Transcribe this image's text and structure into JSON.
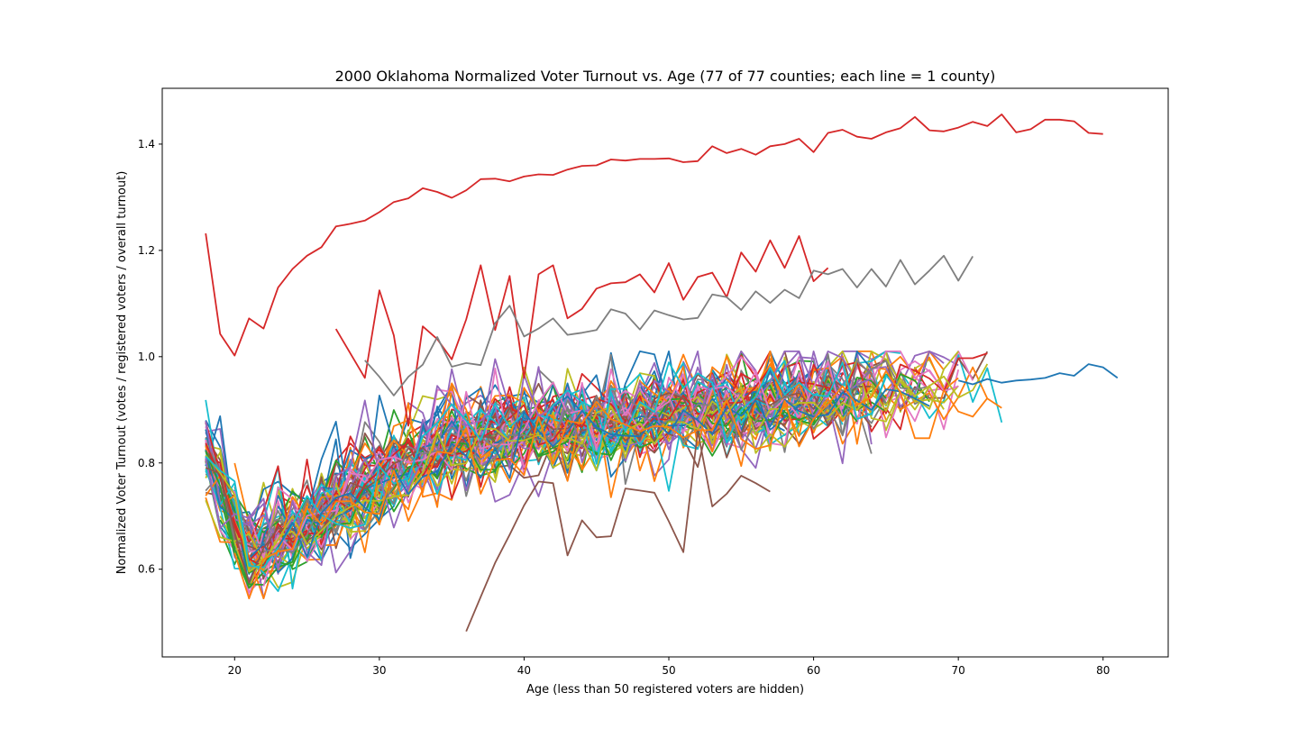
{
  "chart_data": {
    "type": "line",
    "title": "2000 Oklahoma Normalized Voter Turnout vs. Age (77 of 77 counties; each line = 1 county)",
    "xlabel": "Age (less than 50 registered voters are hidden)",
    "ylabel": "Normalized Voter Turnout (votes / registered voters / overall turnout)",
    "xlim": [
      15,
      84.5
    ],
    "ylim": [
      0.435,
      1.505
    ],
    "xticks": [
      20,
      30,
      40,
      50,
      60,
      70,
      80
    ],
    "yticks": [
      0.6,
      0.8,
      1.0,
      1.2,
      1.4
    ],
    "xtick_labels": [
      "20",
      "30",
      "40",
      "50",
      "60",
      "70",
      "80"
    ],
    "ytick_labels": [
      "0.6",
      "0.8",
      "1.0",
      "1.2",
      "1.4"
    ],
    "grid": false,
    "legend": "none",
    "colors": [
      "#1f77b4",
      "#ff7f0e",
      "#2ca02c",
      "#d62728",
      "#9467bd",
      "#8c564b",
      "#e377c2",
      "#7f7f7f",
      "#bcbd22",
      "#17becf"
    ],
    "highlighted_series": [
      {
        "color": "#d62728",
        "x": [
          18,
          19,
          20,
          21,
          22,
          23,
          24,
          25,
          26,
          27,
          28,
          29,
          30,
          31,
          32,
          33,
          34,
          35,
          36,
          37,
          38,
          39,
          40,
          41,
          42,
          43,
          44,
          45,
          46,
          47,
          48,
          49,
          50,
          51,
          52,
          53,
          54,
          55,
          56,
          57,
          58,
          59,
          60,
          61,
          62,
          63,
          64,
          65,
          66,
          67,
          68,
          69,
          70,
          71,
          72,
          73,
          74,
          75,
          76,
          77,
          78,
          79,
          80
        ],
        "y": [
          1.232,
          1.043,
          1.002,
          1.072,
          1.053,
          1.13,
          1.165,
          1.19,
          1.206,
          1.245,
          1.25,
          1.256,
          1.272,
          1.291,
          1.298,
          1.317,
          1.31,
          1.299,
          1.313,
          1.334,
          1.335,
          1.33,
          1.339,
          1.343,
          1.342,
          1.352,
          1.359,
          1.36,
          1.371,
          1.369,
          1.372,
          1.372,
          1.373,
          1.366,
          1.368,
          1.396,
          1.383,
          1.391,
          1.38,
          1.396,
          1.4,
          1.41,
          1.385,
          1.421,
          1.427,
          1.414,
          1.41,
          1.422,
          1.43,
          1.451,
          1.426,
          1.424,
          1.431,
          1.442,
          1.434,
          1.456,
          1.422,
          1.428,
          1.446,
          1.446,
          1.443,
          1.421,
          1.419
        ]
      },
      {
        "color": "#d62728",
        "x": [
          27,
          29,
          30,
          31,
          32,
          33,
          34,
          35,
          36,
          37,
          38,
          39,
          40,
          41,
          42,
          43,
          44,
          45,
          46,
          47,
          48,
          49,
          50,
          51,
          52,
          53,
          54,
          55,
          56,
          57,
          58,
          59,
          60,
          61
        ],
        "y": [
          1.052,
          0.96,
          1.125,
          1.04,
          0.87,
          1.057,
          1.033,
          0.995,
          1.07,
          1.172,
          1.05,
          1.152,
          0.96,
          1.155,
          1.172,
          1.072,
          1.09,
          1.128,
          1.138,
          1.14,
          1.155,
          1.121,
          1.176,
          1.107,
          1.15,
          1.158,
          1.112,
          1.196,
          1.16,
          1.219,
          1.167,
          1.227,
          1.142,
          1.167
        ]
      },
      {
        "color": "#7f7f7f",
        "x": [
          29,
          30,
          31,
          32,
          33,
          34,
          35,
          36,
          37,
          38,
          39,
          40,
          41,
          42,
          43,
          44,
          45,
          46,
          47,
          48,
          49,
          50,
          51,
          52,
          53,
          54,
          55,
          56,
          57,
          58,
          59,
          60,
          61,
          62,
          63,
          64,
          65,
          66,
          67,
          68,
          69,
          70,
          71
        ],
        "y": [
          0.993,
          0.962,
          0.927,
          0.962,
          0.985,
          1.037,
          0.981,
          0.988,
          0.984,
          1.063,
          1.096,
          1.038,
          1.053,
          1.072,
          1.041,
          1.045,
          1.05,
          1.089,
          1.081,
          1.051,
          1.087,
          1.078,
          1.07,
          1.073,
          1.117,
          1.112,
          1.088,
          1.123,
          1.101,
          1.126,
          1.11,
          1.162,
          1.155,
          1.165,
          1.13,
          1.165,
          1.132,
          1.182,
          1.136,
          1.162,
          1.19,
          1.143,
          1.189
        ]
      },
      {
        "color": "#1f77b4",
        "x": [
          70,
          71,
          72,
          73,
          74,
          75,
          76,
          77,
          78,
          79,
          80,
          81
        ],
        "y": [
          0.955,
          0.948,
          0.958,
          0.951,
          0.955,
          0.957,
          0.96,
          0.969,
          0.964,
          0.986,
          0.98,
          0.96
        ]
      },
      {
        "color": "#8c564b",
        "x": [
          36,
          37,
          38,
          39,
          40,
          41,
          42,
          43,
          44,
          45,
          46,
          47,
          48,
          49,
          50,
          51,
          52,
          53,
          54,
          55,
          56,
          57
        ],
        "y": [
          0.483,
          0.548,
          0.612,
          0.665,
          0.72,
          0.765,
          0.762,
          0.626,
          0.692,
          0.66,
          0.662,
          0.752,
          0.748,
          0.744,
          0.69,
          0.632,
          0.86,
          0.718,
          0.742,
          0.776,
          0.762,
          0.746
        ]
      }
    ],
    "bundle_series_count": 72
  }
}
